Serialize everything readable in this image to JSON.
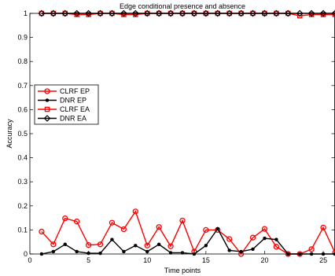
{
  "chart_data": {
    "type": "line",
    "title": "Edge conditional presence and absence",
    "xlabel": "Time points",
    "ylabel": "Accuracy",
    "xlim": [
      0,
      26
    ],
    "ylim": [
      0,
      1
    ],
    "xticks": [
      "0",
      "5",
      "10",
      "15",
      "20",
      "25"
    ],
    "yticks": [
      "0",
      "0.1",
      "0.2",
      "0.3",
      "0.4",
      "0.5",
      "0.6",
      "0.7",
      "0.8",
      "0.9",
      "1"
    ],
    "grid": false,
    "legend_position": "center-left",
    "x": [
      1,
      2,
      3,
      4,
      5,
      6,
      7,
      8,
      9,
      10,
      11,
      12,
      13,
      14,
      15,
      16,
      17,
      18,
      19,
      20,
      21,
      22,
      23,
      24,
      25,
      26
    ],
    "series": [
      {
        "name": "CLRF EP",
        "color": "#ff0000",
        "marker": "circle",
        "values": [
          0.093,
          0.04,
          0.148,
          0.135,
          0.037,
          0.04,
          0.13,
          0.103,
          0.177,
          0.035,
          0.112,
          0.032,
          0.139,
          0.01,
          0.1,
          0.1,
          0.062,
          0.0,
          0.068,
          0.104,
          0.03,
          0.0,
          0.0,
          0.02,
          0.11,
          0.005
        ]
      },
      {
        "name": "DNR EP",
        "color": "#000000",
        "marker": "dot",
        "values": [
          0.0,
          0.01,
          0.04,
          0.01,
          0.003,
          0.003,
          0.06,
          0.01,
          0.035,
          0.01,
          0.04,
          0.005,
          0.005,
          0.0,
          0.035,
          0.105,
          0.015,
          0.01,
          0.02,
          0.065,
          0.06,
          0.0,
          0.0,
          0.0,
          0.0,
          0.0
        ]
      },
      {
        "name": "CLRF EA",
        "color": "#ff0000",
        "marker": "square",
        "values": [
          1.0,
          1.0,
          1.0,
          0.995,
          0.995,
          1.0,
          1.0,
          0.995,
          0.995,
          1.0,
          1.0,
          1.0,
          1.0,
          1.0,
          1.0,
          1.0,
          1.0,
          1.0,
          1.0,
          1.0,
          1.0,
          1.0,
          0.99,
          0.995,
          0.995,
          0.995
        ]
      },
      {
        "name": "DNR EA",
        "color": "#000000",
        "marker": "diamond",
        "values": [
          1.0,
          1.0,
          1.0,
          1.0,
          1.0,
          1.0,
          1.0,
          1.0,
          1.0,
          1.0,
          1.0,
          1.0,
          1.0,
          1.0,
          1.0,
          1.0,
          1.0,
          1.0,
          1.0,
          1.0,
          1.0,
          1.0,
          1.0,
          1.0,
          1.0,
          1.0
        ]
      }
    ]
  }
}
